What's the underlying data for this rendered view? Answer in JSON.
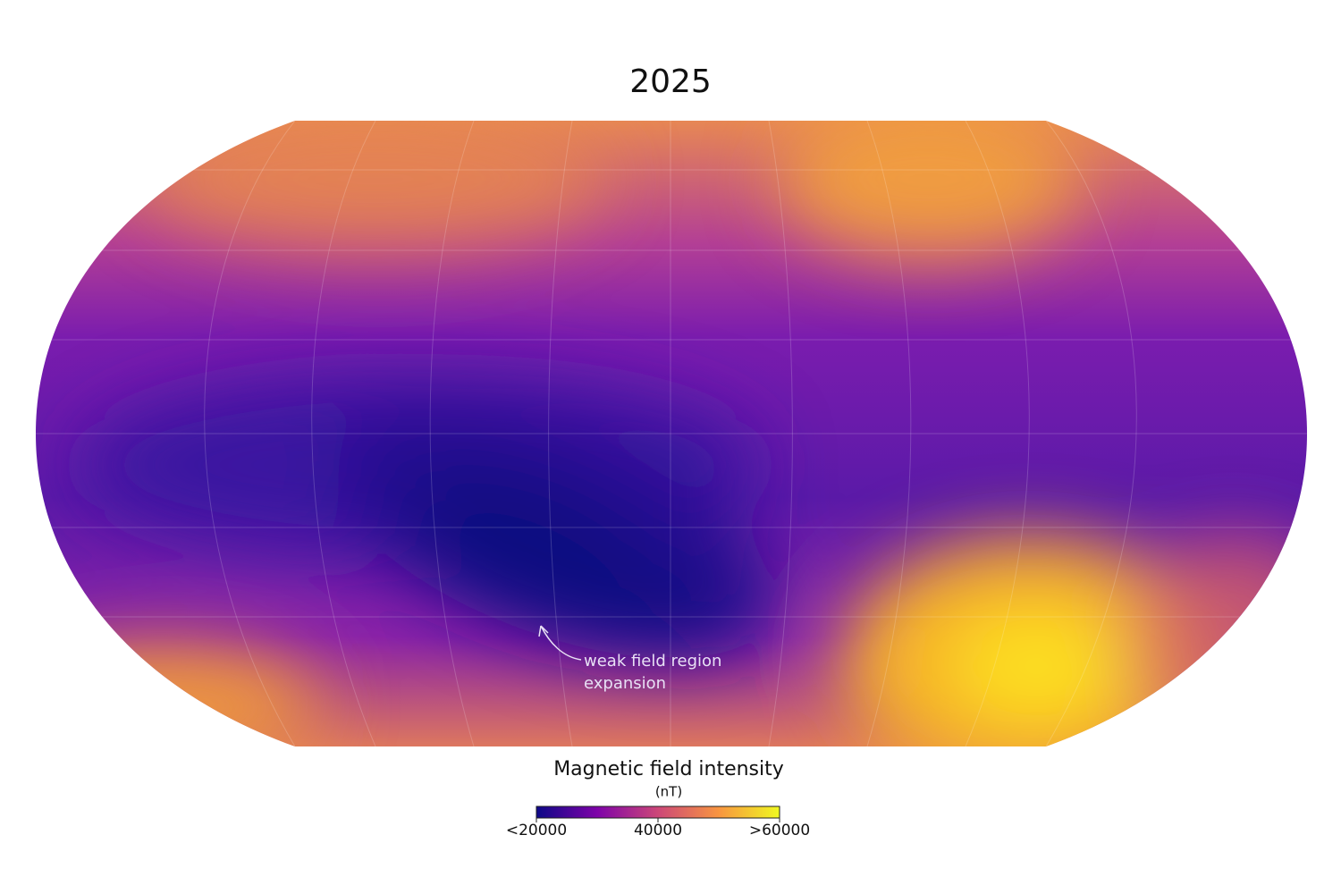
{
  "title": "2025",
  "annotation": {
    "lines": [
      "weak field region",
      "expansion"
    ]
  },
  "colorbar": {
    "title": "Magnetic field intensity",
    "unit": "(nT)",
    "range": [
      20000,
      60000
    ],
    "colors": [
      "#0d0887",
      "#7e03a8",
      "#cc4778",
      "#f89540",
      "#f0f921"
    ],
    "ticks": [
      {
        "value": 20000,
        "label": "<20000"
      },
      40000,
      {
        "value": 60000,
        "label": ">60000"
      }
    ]
  }
}
